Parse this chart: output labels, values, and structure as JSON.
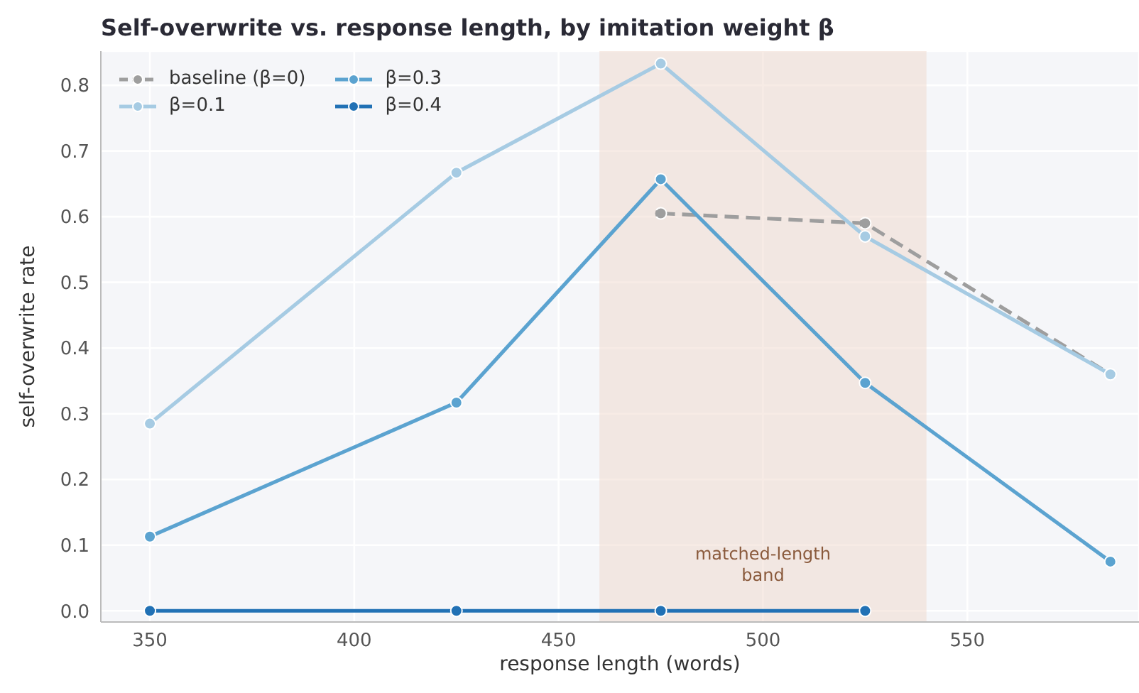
{
  "chart_data": {
    "type": "line",
    "title": "Self-overwrite vs. response length, by imitation weight β",
    "xlabel": "response length (words)",
    "ylabel": "self-overwrite rate",
    "x": [
      350,
      425,
      475,
      525,
      585
    ],
    "series": [
      {
        "name": "baseline (β=0)",
        "color": "#9e9e9e",
        "line_style": "dashed",
        "values": [
          null,
          null,
          0.605,
          0.59,
          0.36
        ]
      },
      {
        "name": "β=0.1",
        "color": "#a6cbe3",
        "values": [
          0.285,
          0.667,
          0.833,
          0.57,
          0.36
        ]
      },
      {
        "name": "β=0.3",
        "color": "#5ba3d0",
        "values": [
          0.113,
          0.317,
          0.657,
          0.347,
          0.075
        ]
      },
      {
        "name": "β=0.4",
        "color": "#2171b5",
        "values": [
          0,
          0,
          0,
          0,
          null
        ]
      }
    ],
    "xlim": [
      338,
      592
    ],
    "xticks": [
      350,
      400,
      450,
      500,
      550
    ],
    "ylim": [
      -0.017,
      0.852
    ],
    "yticks": [
      {
        "value": 0,
        "label": "0.0"
      },
      0.1,
      0.2,
      0.3,
      0.4,
      0.5,
      0.6,
      0.7,
      0.8
    ],
    "bands": [
      {
        "axis": "x",
        "from": 460,
        "to": 540,
        "color": "#f0d8cc"
      }
    ],
    "annotations": [
      "matched-length band"
    ],
    "grid": true,
    "legend": "top left",
    "marker": "circle",
    "line_style": "solid"
  }
}
